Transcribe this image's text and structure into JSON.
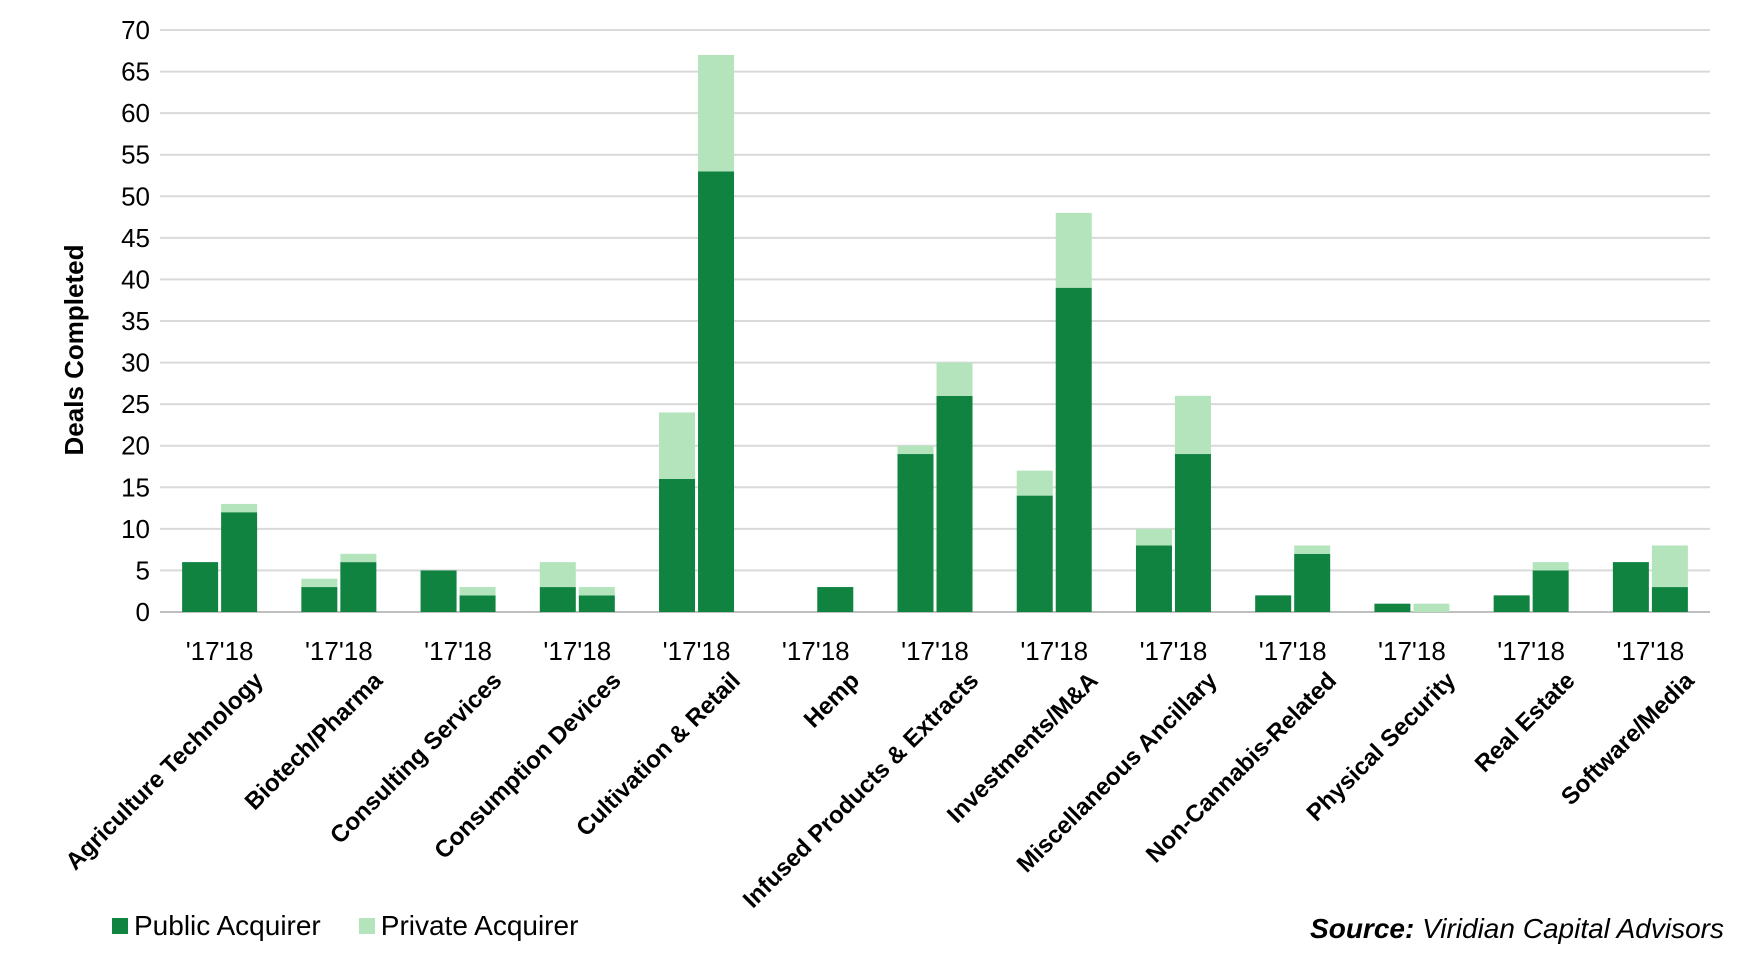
{
  "chart_data": {
    "type": "bar",
    "stacked": true,
    "ylabel": "Deals Completed",
    "ylim": [
      0,
      70
    ],
    "yticks": [
      0,
      5,
      10,
      15,
      20,
      25,
      30,
      35,
      40,
      45,
      50,
      55,
      60,
      65,
      70
    ],
    "grid": true,
    "years": [
      "'17",
      "'18"
    ],
    "categories": [
      "Agriculture Technology",
      "Biotech/Pharma",
      "Consulting Services",
      "Consumption Devices",
      "Cultivation & Retail",
      "Hemp",
      "Infused Products & Extracts",
      "Investments/M&A",
      "Miscellaneous Ancillary",
      "Non-Cannabis-Related",
      "Physical Security",
      "Real Estate",
      "Software/Media"
    ],
    "series": [
      {
        "name": "Public Acquirer",
        "color": "#108341",
        "values_17": [
          6,
          3,
          5,
          3,
          16,
          0,
          19,
          14,
          8,
          2,
          1,
          2,
          6
        ],
        "values_18": [
          12,
          6,
          2,
          2,
          53,
          3,
          26,
          39,
          19,
          7,
          0,
          5,
          3
        ]
      },
      {
        "name": "Private Acquirer",
        "color": "#b4e4bc",
        "values_17": [
          0,
          1,
          0,
          3,
          8,
          0,
          1,
          3,
          2,
          0,
          0,
          0,
          0
        ],
        "values_18": [
          1,
          1,
          1,
          1,
          14,
          0,
          4,
          9,
          7,
          1,
          1,
          1,
          5
        ]
      }
    ],
    "legend_position": "bottom-left"
  },
  "source": {
    "prefix": "Source:",
    "text": " Viridian Capital Advisors"
  }
}
